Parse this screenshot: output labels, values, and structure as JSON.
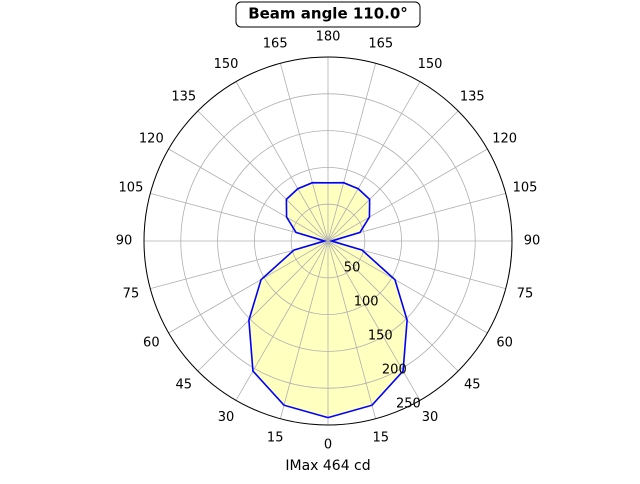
{
  "chart_data": {
    "type": "polar",
    "title": "Beam angle 110.0°",
    "xlabel": "IMax 464 cd",
    "x": [
      0,
      15,
      30,
      45,
      60,
      75,
      90,
      105,
      120,
      135,
      150,
      165,
      180,
      195,
      210,
      225,
      240,
      255,
      270,
      285,
      300,
      315,
      330,
      345,
      360
    ],
    "values": [
      240,
      231,
      204,
      152,
      105,
      48,
      5,
      45,
      65,
      80,
      82,
      82,
      79,
      82,
      82,
      80,
      65,
      45,
      5,
      48,
      105,
      152,
      204,
      231,
      240
    ],
    "color": "#0000ff",
    "fill": "#ffffc0",
    "ylim": [
      0,
      250
    ],
    "yticks": [
      50,
      100,
      150,
      200,
      250
    ],
    "xticks": [
      0,
      15,
      30,
      45,
      60,
      75,
      90,
      105,
      120,
      135,
      150,
      165,
      180,
      {
        "value": 195,
        "label": "165"
      },
      {
        "value": 210,
        "label": "150"
      },
      {
        "value": 225,
        "label": "135"
      },
      {
        "value": 240,
        "label": "120"
      },
      {
        "value": 255,
        "label": "105"
      },
      {
        "value": 270,
        "label": "90"
      },
      {
        "value": 285,
        "label": "75"
      },
      {
        "value": 300,
        "label": "60"
      },
      {
        "value": 315,
        "label": "45"
      },
      {
        "value": 330,
        "label": "30"
      },
      {
        "value": 345,
        "label": "15"
      }
    ],
    "grid": true
  }
}
